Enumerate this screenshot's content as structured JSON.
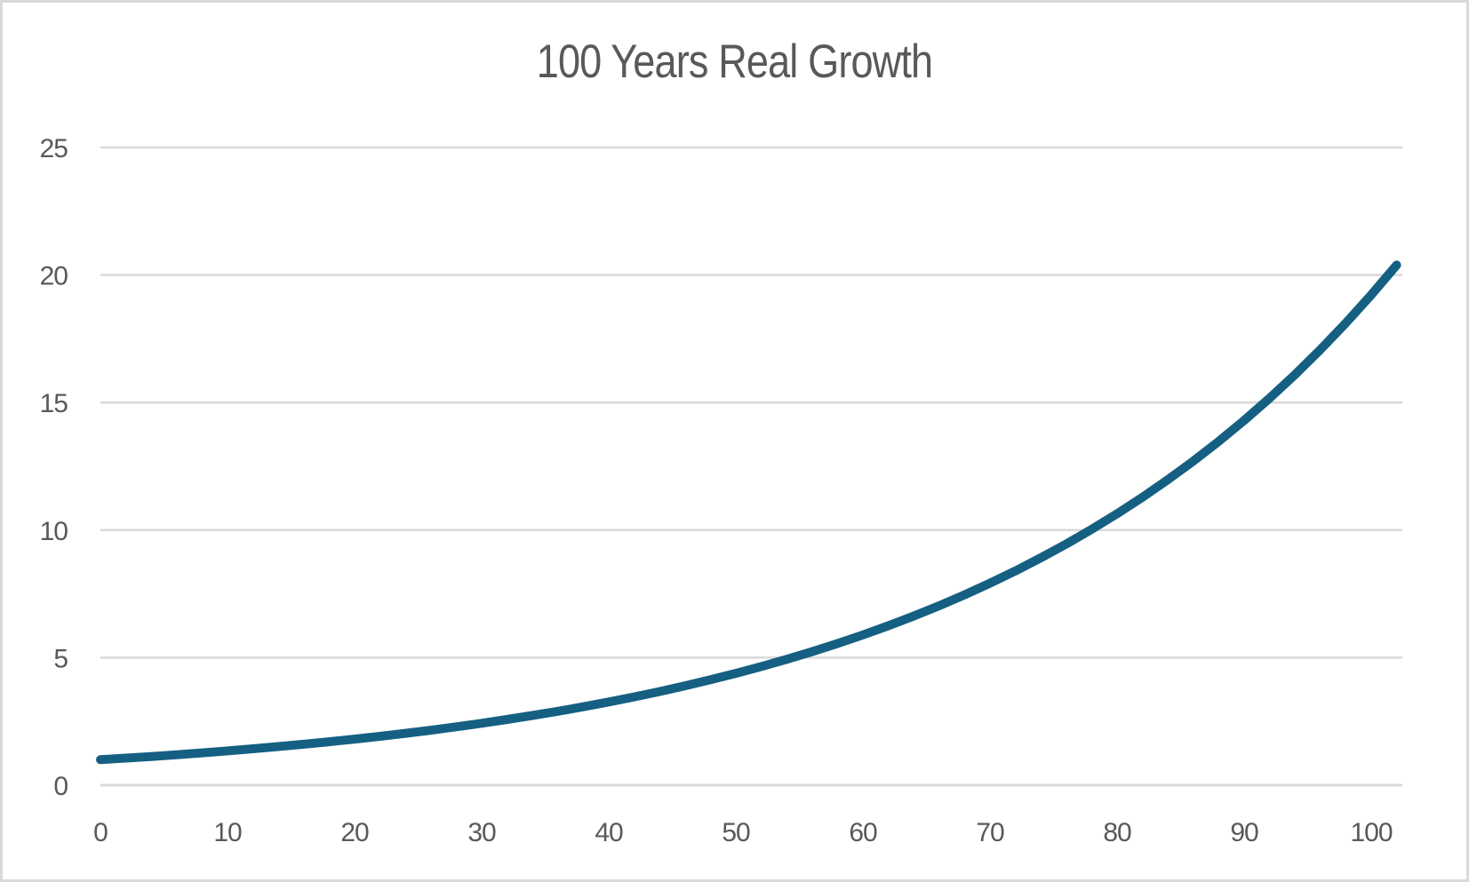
{
  "chart_data": {
    "type": "line",
    "title": "100 Years Real Growth",
    "xlabel": "",
    "ylabel": "",
    "xlim": [
      0,
      102
    ],
    "ylim": [
      0,
      25
    ],
    "x_ticks": [
      0,
      10,
      20,
      30,
      40,
      50,
      60,
      70,
      80,
      90,
      100
    ],
    "y_ticks": [
      0,
      5,
      10,
      15,
      20,
      25
    ],
    "grid": "horizontal-only",
    "legend": "none",
    "series": [
      {
        "x": [
          0,
          2,
          4,
          6,
          8,
          10,
          12,
          14,
          16,
          18,
          20,
          22,
          24,
          26,
          28,
          30,
          32,
          34,
          36,
          38,
          40,
          42,
          44,
          46,
          48,
          50,
          52,
          54,
          56,
          58,
          60,
          62,
          64,
          66,
          68,
          70,
          72,
          74,
          76,
          78,
          80,
          82,
          84,
          86,
          88,
          90,
          92,
          94,
          96,
          98,
          100,
          102
        ],
        "y": [
          1.0,
          1.061,
          1.126,
          1.194,
          1.267,
          1.344,
          1.426,
          1.513,
          1.605,
          1.702,
          1.806,
          1.916,
          2.033,
          2.157,
          2.288,
          2.427,
          2.575,
          2.732,
          2.898,
          3.075,
          3.262,
          3.461,
          3.671,
          3.895,
          4.132,
          4.384,
          4.651,
          4.934,
          5.235,
          5.553,
          5.892,
          6.25,
          6.631,
          7.035,
          7.463,
          7.918,
          8.4,
          8.912,
          9.454,
          10.03,
          10.641,
          11.289,
          11.976,
          12.706,
          13.48,
          14.3,
          15.171,
          16.095,
          17.076,
          18.115,
          19.219,
          20.389
        ]
      }
    ],
    "style": {
      "line_color": "#156082",
      "line_width": 10,
      "gridline_color": "#d9d9d9",
      "text_color": "#595959",
      "background_color": "#ffffff",
      "border_color": "#d9d9d9"
    }
  }
}
